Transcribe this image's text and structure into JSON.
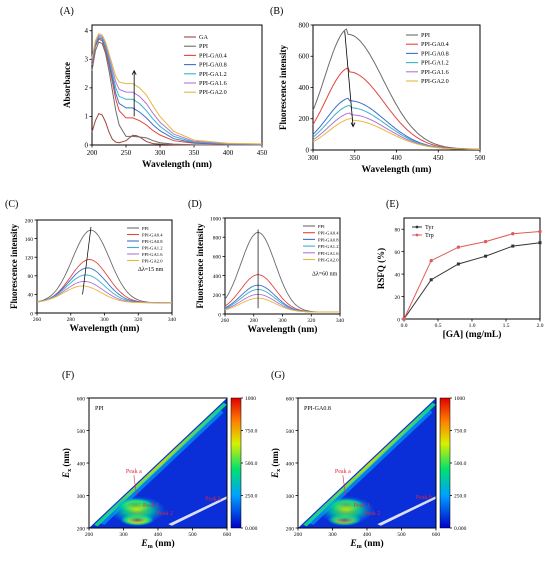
{
  "figure": {
    "panels": [
      "(A)",
      "(B)",
      "(C)",
      "(D)",
      "(E)",
      "(F)",
      "(G)"
    ]
  },
  "series_colors": {
    "GA": "#a2453f",
    "PPI": "#6c6c6c",
    "PPI-GA0.4": "#e0473d",
    "PPI-GA0.8": "#3f6fc8",
    "PPI-GA1.2": "#3ab0c9",
    "PPI-GA1.6": "#b774d6",
    "PPI-GA2.0": "#e6b740"
  },
  "chart_data": [
    {
      "id": "A",
      "type": "line",
      "xlabel": "Wavelength (nm)",
      "ylabel": "Absorbance",
      "xlim": [
        200,
        450
      ],
      "ylim": [
        0,
        4.2
      ],
      "xticks": [
        200,
        250,
        300,
        350,
        400,
        450
      ],
      "yticks": [
        0,
        1,
        2,
        3,
        4
      ],
      "legend_position": "top-right",
      "series": [
        {
          "name": "GA",
          "x": [
            200,
            205,
            210,
            215,
            220,
            225,
            230,
            235,
            240,
            250,
            255,
            260,
            265,
            270,
            275,
            280,
            290,
            300,
            320,
            350,
            400,
            450
          ],
          "y": [
            0.45,
            0.85,
            1.1,
            1.05,
            0.8,
            0.45,
            0.2,
            0.1,
            0.08,
            0.15,
            0.25,
            0.34,
            0.33,
            0.28,
            0.2,
            0.12,
            0.05,
            0.03,
            0.01,
            0.0,
            0.0,
            0.0
          ]
        },
        {
          "name": "PPI",
          "x": [
            200,
            205,
            210,
            215,
            220,
            225,
            230,
            235,
            240,
            250,
            260,
            270,
            280,
            290,
            300,
            320,
            350,
            400,
            450
          ],
          "y": [
            2.6,
            3.3,
            3.6,
            3.55,
            3.2,
            2.6,
            1.9,
            1.2,
            0.7,
            0.3,
            0.3,
            0.28,
            0.25,
            0.15,
            0.08,
            0.03,
            0.01,
            0.0,
            0.0
          ]
        },
        {
          "name": "PPI-GA0.4",
          "x": [
            200,
            205,
            210,
            215,
            220,
            225,
            230,
            235,
            240,
            250,
            260,
            270,
            280,
            290,
            300,
            320,
            350,
            400,
            450
          ],
          "y": [
            2.8,
            3.45,
            3.7,
            3.65,
            3.3,
            2.8,
            2.2,
            1.6,
            1.2,
            0.95,
            0.95,
            0.85,
            0.7,
            0.5,
            0.35,
            0.15,
            0.06,
            0.02,
            0.01
          ]
        },
        {
          "name": "PPI-GA0.8",
          "x": [
            200,
            205,
            210,
            215,
            220,
            225,
            230,
            235,
            240,
            250,
            260,
            270,
            280,
            290,
            300,
            320,
            350,
            400,
            450
          ],
          "y": [
            2.9,
            3.5,
            3.75,
            3.7,
            3.4,
            2.9,
            2.35,
            1.8,
            1.45,
            1.3,
            1.3,
            1.15,
            0.95,
            0.7,
            0.5,
            0.22,
            0.08,
            0.03,
            0.02
          ]
        },
        {
          "name": "PPI-GA1.2",
          "x": [
            200,
            205,
            210,
            215,
            220,
            225,
            230,
            235,
            240,
            250,
            260,
            270,
            280,
            290,
            300,
            320,
            350,
            400,
            450
          ],
          "y": [
            2.95,
            3.55,
            3.8,
            3.75,
            3.45,
            3.0,
            2.5,
            2.0,
            1.7,
            1.6,
            1.6,
            1.45,
            1.2,
            0.9,
            0.65,
            0.3,
            0.1,
            0.04,
            0.02
          ]
        },
        {
          "name": "PPI-GA1.6",
          "x": [
            200,
            205,
            210,
            215,
            220,
            225,
            230,
            235,
            240,
            250,
            260,
            270,
            280,
            290,
            300,
            320,
            350,
            400,
            450
          ],
          "y": [
            3.0,
            3.6,
            3.85,
            3.8,
            3.55,
            3.1,
            2.65,
            2.2,
            1.95,
            1.85,
            1.85,
            1.7,
            1.45,
            1.1,
            0.8,
            0.38,
            0.13,
            0.05,
            0.03
          ]
        },
        {
          "name": "PPI-GA2.0",
          "x": [
            200,
            205,
            210,
            215,
            220,
            225,
            230,
            235,
            240,
            250,
            260,
            270,
            280,
            290,
            300,
            320,
            350,
            400,
            450
          ],
          "y": [
            3.05,
            3.65,
            3.9,
            3.85,
            3.6,
            3.2,
            2.8,
            2.4,
            2.2,
            2.15,
            2.15,
            2.0,
            1.75,
            1.35,
            1.0,
            0.48,
            0.17,
            0.06,
            0.04
          ]
        }
      ]
    },
    {
      "id": "B",
      "type": "line",
      "xlabel": "Wavelength (nm)",
      "ylabel": "Fluorescence intensity",
      "xlim": [
        300,
        500
      ],
      "ylim": [
        0,
        800
      ],
      "xticks": [
        300,
        350,
        400,
        450,
        500
      ],
      "yticks": [
        0,
        200,
        400,
        600,
        800
      ],
      "legend_position": "top-right",
      "peaks": [
        {
          "name": "PPI",
          "peak_x": 342,
          "peak_y": 740
        },
        {
          "name": "PPI-GA0.4",
          "peak_x": 343,
          "peak_y": 500
        },
        {
          "name": "PPI-GA0.8",
          "peak_x": 344,
          "peak_y": 315
        },
        {
          "name": "PPI-GA1.2",
          "peak_x": 345,
          "peak_y": 270
        },
        {
          "name": "PPI-GA1.6",
          "peak_x": 346,
          "peak_y": 225
        },
        {
          "name": "PPI-GA2.0",
          "peak_x": 347,
          "peak_y": 190
        }
      ],
      "baseline_start_y": [
        260,
        175,
        120,
        105,
        90,
        80
      ]
    },
    {
      "id": "C",
      "type": "line",
      "xlabel": "Wavelength (nm)",
      "ylabel": "Fluorescence intensity",
      "xlim": [
        260,
        340
      ],
      "ylim": [
        0,
        200
      ],
      "xticks": [
        260,
        280,
        300,
        320,
        340
      ],
      "yticks": [
        0,
        40,
        80,
        120,
        160,
        200
      ],
      "legend_position": "top-right",
      "annotation": "Δλ=15 nm",
      "peaks": [
        {
          "name": "PPI",
          "peak_x": 292,
          "peak_y": 178
        },
        {
          "name": "PPI-GA0.4",
          "peak_x": 291,
          "peak_y": 115
        },
        {
          "name": "PPI-GA0.8",
          "peak_x": 290,
          "peak_y": 97
        },
        {
          "name": "PPI-GA1.2",
          "peak_x": 289,
          "peak_y": 82
        },
        {
          "name": "PPI-GA1.6",
          "peak_x": 288,
          "peak_y": 68
        },
        {
          "name": "PPI-GA2.0",
          "peak_x": 287,
          "peak_y": 58
        }
      ]
    },
    {
      "id": "D",
      "type": "line",
      "xlabel": "Wavelength (nm)",
      "ylabel": "Fluorescence intensity",
      "xlim": [
        260,
        340
      ],
      "ylim": [
        0,
        1000
      ],
      "xticks": [
        260,
        280,
        300,
        320,
        340
      ],
      "yticks": [
        0,
        200,
        400,
        600,
        800,
        1000
      ],
      "legend_position": "top-right",
      "annotation": "Δλ=60 nm",
      "peaks": [
        {
          "name": "PPI",
          "peak_x": 283,
          "peak_y": 850
        },
        {
          "name": "PPI-GA0.4",
          "peak_x": 283,
          "peak_y": 410
        },
        {
          "name": "PPI-GA0.8",
          "peak_x": 283,
          "peak_y": 300
        },
        {
          "name": "PPI-GA1.2",
          "peak_x": 283,
          "peak_y": 255
        },
        {
          "name": "PPI-GA1.6",
          "peak_x": 283,
          "peak_y": 205
        },
        {
          "name": "PPI-GA2.0",
          "peak_x": 283,
          "peak_y": 165
        }
      ]
    },
    {
      "id": "E",
      "type": "line",
      "xlabel": "[GA] (mg/mL)",
      "ylabel": "RSFQ (%)",
      "xlim": [
        0,
        2.0
      ],
      "ylim": [
        0,
        90
      ],
      "xticks": [
        0.0,
        0.5,
        1.0,
        1.5,
        2.0
      ],
      "yticks": [
        0,
        20,
        40,
        60,
        80
      ],
      "legend_position": "top-left",
      "series": [
        {
          "name": "Tyr",
          "color": "#333333",
          "x": [
            0,
            0.4,
            0.8,
            1.2,
            1.6,
            2.0
          ],
          "y": [
            0,
            35,
            49,
            56,
            65,
            68
          ]
        },
        {
          "name": "Trp",
          "color": "#e05a5a",
          "x": [
            0,
            0.4,
            0.8,
            1.2,
            1.6,
            2.0
          ],
          "y": [
            0,
            52,
            64,
            69,
            76,
            78
          ]
        }
      ]
    },
    {
      "id": "F",
      "type": "heatmap",
      "xlabel": "E_m (nm)",
      "ylabel": "E_x (nm)",
      "xlim": [
        200,
        600
      ],
      "ylim": [
        200,
        600
      ],
      "xticks": [
        200,
        300,
        400,
        500,
        600
      ],
      "yticks": [
        200,
        300,
        400,
        500,
        600
      ],
      "inset_label": "PPI",
      "peaks": [
        {
          "label": "Peak a",
          "em": 330,
          "ex": 370
        },
        {
          "label": "Peak 1",
          "em": 380,
          "ex": 265
        },
        {
          "label": "Peak 2",
          "em": 420,
          "ex": 240
        },
        {
          "label": "Peak b",
          "em": 560,
          "ex": 285
        }
      ],
      "colorbar": {
        "min": 0,
        "max": 1000,
        "ticks": [
          "0.000",
          "250.0",
          "500.0",
          "750.0",
          "1000"
        ]
      }
    },
    {
      "id": "G",
      "type": "heatmap",
      "xlabel": "E_m (nm)",
      "ylabel": "E_x (nm)",
      "xlim": [
        200,
        600
      ],
      "ylim": [
        200,
        600
      ],
      "xticks": [
        200,
        300,
        400,
        500,
        600
      ],
      "yticks": [
        200,
        300,
        400,
        500,
        600
      ],
      "inset_label": "PPI-GA0.8",
      "peaks": [
        {
          "label": "Peak a",
          "em": 330,
          "ex": 370
        },
        {
          "label": "Peak 1",
          "em": 385,
          "ex": 265
        },
        {
          "label": "Peak 2",
          "em": 415,
          "ex": 240
        },
        {
          "label": "Peak b",
          "em": 565,
          "ex": 290
        }
      ],
      "colorbar": {
        "min": 0,
        "max": 1000,
        "ticks": [
          "0.000",
          "250.0",
          "500.0",
          "750.0",
          "1000"
        ]
      }
    }
  ]
}
